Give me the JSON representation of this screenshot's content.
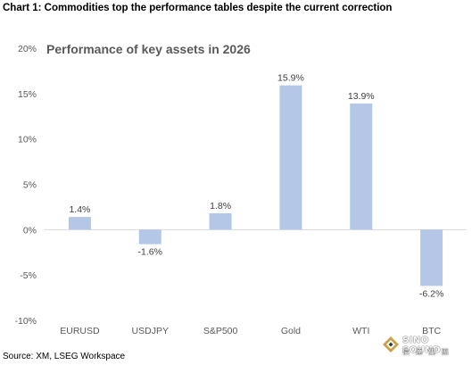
{
  "header": {
    "title": "Chart 1: Commodities top the performance tables despite the current correction"
  },
  "footer": {
    "source": "Source: XM, LSEG Workspace"
  },
  "logo": {
    "text": "SINO SOUND",
    "sub": "信 達 集 團"
  },
  "chart_data": {
    "type": "bar",
    "title": "Performance of key assets in 2026",
    "categories": [
      "EURUSD",
      "USDJPY",
      "S&P500",
      "Gold",
      "WTI",
      "BTC"
    ],
    "values": [
      1.4,
      -1.6,
      1.8,
      15.9,
      13.9,
      -6.2
    ],
    "data_labels": [
      "1.4%",
      "-1.6%",
      "1.8%",
      "15.9%",
      "13.9%",
      "-6.2%"
    ],
    "ylim": [
      -10,
      20
    ],
    "yticks": [
      -10,
      -5,
      0,
      5,
      10,
      15,
      20
    ],
    "ytick_labels": [
      "-10%",
      "-5%",
      "0%",
      "5%",
      "10%",
      "15%",
      "20%"
    ],
    "xlabel": "",
    "ylabel": "",
    "grid": false,
    "colors": {
      "bar": "#b4c7e7",
      "axis": "#d9d9d9"
    }
  }
}
